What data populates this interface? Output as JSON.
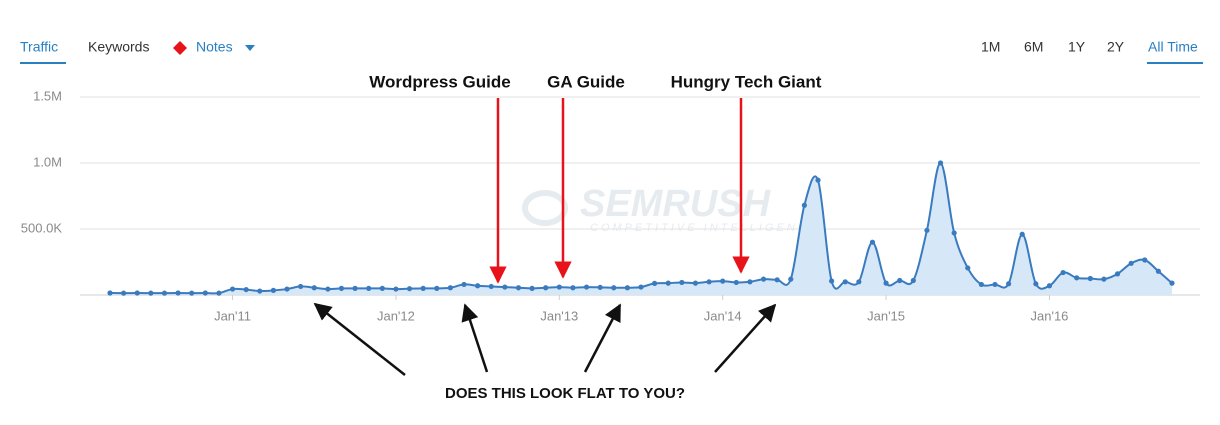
{
  "ui": {
    "tabs": [
      "Traffic",
      "Keywords",
      "Notes"
    ],
    "ranges": [
      "1M",
      "6M",
      "1Y",
      "2Y",
      "All Time"
    ]
  },
  "chart_data": {
    "type": "area",
    "watermark": [
      "SEMRUSH",
      "COMPETITIVE INTELLIGENCE"
    ],
    "annotations": [
      "Wordpress Guide",
      "GA Guide",
      "Hungry Tech Giant",
      "DOES THIS LOOK FLAT TO YOU?"
    ],
    "color": "#3a7bbf",
    "fill": "#d6e8f7",
    "x": [
      "2010-04",
      "2010-05",
      "2010-06",
      "2010-07",
      "2010-08",
      "2010-09",
      "2010-10",
      "2010-11",
      "2010-12",
      "2011-01",
      "2011-02",
      "2011-03",
      "2011-04",
      "2011-05",
      "2011-06",
      "2011-07",
      "2011-08",
      "2011-09",
      "2011-10",
      "2011-11",
      "2011-12",
      "2012-01",
      "2012-02",
      "2012-03",
      "2012-04",
      "2012-05",
      "2012-06",
      "2012-07",
      "2012-08",
      "2012-09",
      "2012-10",
      "2012-11",
      "2012-12",
      "2013-01",
      "2013-02",
      "2013-03",
      "2013-04",
      "2013-05",
      "2013-06",
      "2013-07",
      "2013-08",
      "2013-09",
      "2013-10",
      "2013-11",
      "2013-12",
      "2014-01",
      "2014-02",
      "2014-03",
      "2014-04",
      "2014-05",
      "2014-06",
      "2014-07",
      "2014-08",
      "2014-09",
      "2014-10",
      "2014-11",
      "2014-12",
      "2015-01",
      "2015-02",
      "2015-03",
      "2015-04",
      "2015-05",
      "2015-06",
      "2015-07",
      "2015-08",
      "2015-09",
      "2015-10",
      "2015-11",
      "2015-12",
      "2016-01",
      "2016-02",
      "2016-03",
      "2016-04",
      "2016-05",
      "2016-06",
      "2016-07",
      "2016-08",
      "2016-09",
      "2016-10"
    ],
    "values": [
      15000,
      14000,
      15000,
      14000,
      14000,
      15000,
      14000,
      15000,
      14000,
      45000,
      41000,
      30000,
      35000,
      45000,
      65000,
      55000,
      45000,
      50000,
      50000,
      50000,
      50000,
      45000,
      48000,
      50000,
      50000,
      55000,
      80000,
      70000,
      65000,
      60000,
      55000,
      50000,
      55000,
      60000,
      55000,
      60000,
      58000,
      55000,
      55000,
      60000,
      88000,
      90000,
      95000,
      90000,
      100000,
      105000,
      95000,
      100000,
      120000,
      115000,
      120000,
      680000,
      870000,
      106000,
      100000,
      100000,
      400000,
      90000,
      110000,
      110000,
      490000,
      1000000,
      470000,
      205000,
      80000,
      80000,
      85000,
      460000,
      85000,
      70000,
      170000,
      130000,
      125000,
      120000,
      160000,
      240000,
      265000,
      180000,
      90000
    ],
    "xlim": [
      "2010-04",
      "2016-10"
    ],
    "xticks": [
      {
        "value": "2011-01",
        "label": "Jan'11"
      },
      {
        "value": "2012-01",
        "label": "Jan'12"
      },
      {
        "value": "2013-01",
        "label": "Jan'13"
      },
      {
        "value": "2014-01",
        "label": "Jan'14"
      },
      {
        "value": "2015-01",
        "label": "Jan'15"
      },
      {
        "value": "2016-01",
        "label": "Jan'16"
      }
    ],
    "ylim": [
      0,
      1500000
    ],
    "yticks": [
      {
        "value": 500000,
        "label": "500.0K"
      },
      {
        "value": 1000000,
        "label": "1.0M"
      },
      {
        "value": 1500000,
        "label": "1.5M"
      }
    ],
    "grid": true
  }
}
